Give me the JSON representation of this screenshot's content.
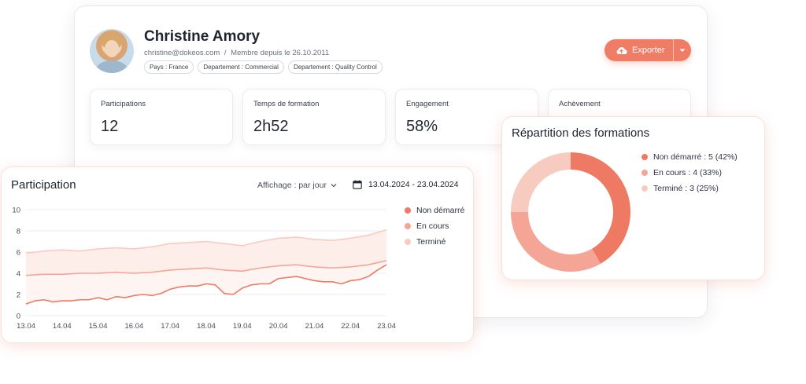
{
  "profile": {
    "name": "Christine Amory",
    "email": "christine@dokeos.com",
    "separator": "/",
    "member_since": "Membre depuis le 26.10.2011",
    "chips": [
      "Pays : France",
      "Departement : Commercial",
      "Departement : Quality Control"
    ]
  },
  "export": {
    "label": "Exporter",
    "icon": "cloud-upload-icon",
    "caret": "▾"
  },
  "stats": [
    {
      "label": "Participations",
      "value": "12"
    },
    {
      "label": "Temps de formation",
      "value": "2h52"
    },
    {
      "label": "Engagement",
      "value": "58%"
    },
    {
      "label": "Achèvement",
      "value": ""
    }
  ],
  "participation": {
    "title": "Participation",
    "filter_label": "Affichage : par jour",
    "date_range": "13.04.2024 - 23.04.2024"
  },
  "repartition": {
    "title": "Répartition des formations"
  },
  "colors": {
    "accent": "#ef7d66",
    "non_demarre": "#ee7a63",
    "en_cours": "#f4a596",
    "termine": "#f8cbc1"
  },
  "chart_data": [
    {
      "type": "line",
      "title": "Participation",
      "ylim": [
        0,
        10
      ],
      "yticks": [
        0,
        2,
        4,
        6,
        8,
        10
      ],
      "categories": [
        "13.04",
        "14.04",
        "15.04",
        "16.04",
        "17.04",
        "18.04",
        "19.04",
        "20.04",
        "21.04",
        "22.04",
        "23.04"
      ],
      "grid": true,
      "legend_position": "right",
      "series": [
        {
          "name": "Non démarré",
          "color": "#ee7a63",
          "x": [
            0,
            0.25,
            0.5,
            0.75,
            1,
            1.25,
            1.5,
            1.75,
            2,
            2.25,
            2.5,
            2.75,
            3,
            3.25,
            3.5,
            3.75,
            4,
            4.25,
            4.5,
            4.75,
            5,
            5.25,
            5.5,
            5.75,
            6,
            6.25,
            6.5,
            6.75,
            7,
            7.25,
            7.5,
            7.75,
            8,
            8.25,
            8.5,
            8.75,
            9,
            9.25,
            9.5,
            9.75,
            10
          ],
          "values": [
            1.1,
            1.4,
            1.5,
            1.3,
            1.4,
            1.4,
            1.5,
            1.5,
            1.7,
            1.5,
            1.8,
            1.7,
            1.9,
            2.0,
            1.9,
            2.1,
            2.5,
            2.7,
            2.8,
            2.8,
            3.0,
            2.9,
            2.1,
            2.0,
            2.6,
            2.9,
            3.0,
            3.0,
            3.5,
            3.6,
            3.7,
            3.5,
            3.3,
            3.2,
            3.2,
            3.0,
            3.3,
            3.4,
            3.7,
            4.3,
            4.8
          ]
        },
        {
          "name": "En cours",
          "color": "#f4a596",
          "x": [
            0,
            0.5,
            1,
            1.5,
            2,
            2.5,
            3,
            3.5,
            4,
            4.5,
            5,
            5.5,
            6,
            6.5,
            7,
            7.5,
            8,
            8.5,
            9,
            9.5,
            10
          ],
          "values": [
            3.8,
            3.9,
            3.9,
            4.0,
            4.0,
            4.1,
            4.0,
            4.1,
            4.3,
            4.4,
            4.5,
            4.3,
            4.2,
            4.5,
            4.7,
            4.8,
            4.6,
            4.5,
            4.6,
            4.8,
            5.2
          ]
        },
        {
          "name": "Terminé",
          "color": "#f8cbc1",
          "x": [
            0,
            0.5,
            1,
            1.5,
            2,
            2.5,
            3,
            3.5,
            4,
            4.5,
            5,
            5.5,
            6,
            6.5,
            7,
            7.5,
            8,
            8.5,
            9,
            9.5,
            10
          ],
          "values": [
            5.9,
            6.1,
            6.2,
            6.1,
            6.3,
            6.4,
            6.3,
            6.5,
            6.8,
            6.9,
            7.0,
            6.8,
            6.6,
            7.0,
            7.3,
            7.4,
            7.2,
            7.1,
            7.3,
            7.6,
            8.1
          ]
        }
      ]
    },
    {
      "type": "pie",
      "title": "Répartition des formations",
      "donut": true,
      "slices": [
        {
          "name": "Non démarré",
          "value": 5,
          "percent": 42,
          "label": "Non démarré : 5 (42%)",
          "color": "#ee7a63"
        },
        {
          "name": "En cours",
          "value": 4,
          "percent": 33,
          "label": "En cours : 4 (33%)",
          "color": "#f4a596"
        },
        {
          "name": "Terminé",
          "value": 3,
          "percent": 25,
          "label": "Terminé : 3 (25%)",
          "color": "#f8cbc1"
        }
      ]
    }
  ]
}
